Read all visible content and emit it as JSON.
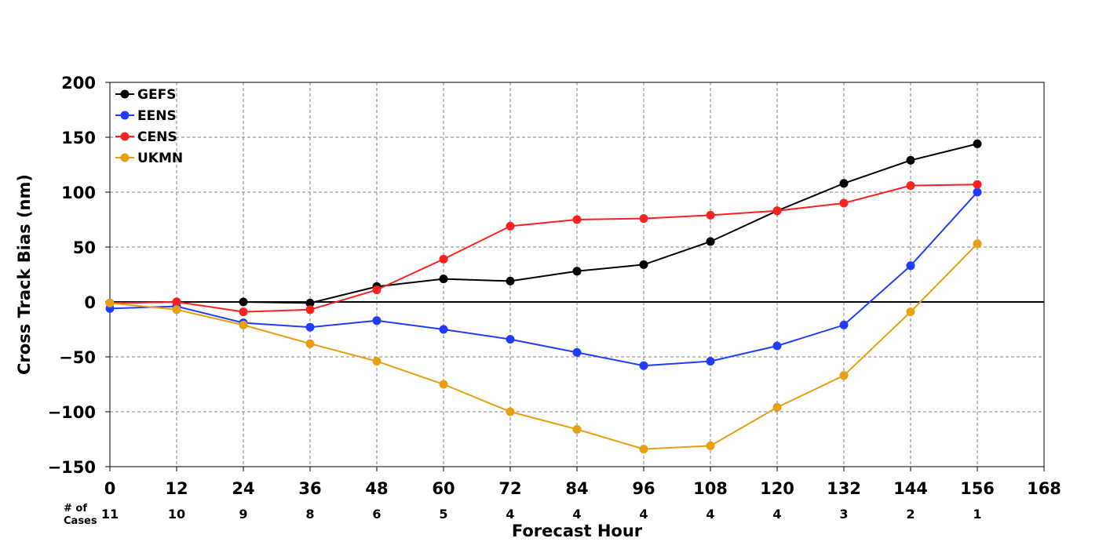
{
  "chart_data": {
    "type": "line",
    "xlabel": "Forecast Hour",
    "ylabel": "Cross Track Bias (nm)",
    "xlim": [
      0,
      168
    ],
    "ylim": [
      -150,
      200
    ],
    "x_ticks": [
      "0",
      "12",
      "24",
      "36",
      "48",
      "60",
      "72",
      "84",
      "96",
      "108",
      "120",
      "132",
      "144",
      "156",
      "168"
    ],
    "y_ticks": [
      "200",
      "150",
      "100",
      "50",
      "0",
      "−50",
      "−100",
      "−150"
    ],
    "grid": true,
    "legend_position": "top-left",
    "x": [
      0,
      12,
      24,
      36,
      48,
      60,
      72,
      84,
      96,
      108,
      120,
      132,
      144,
      156
    ],
    "series": [
      {
        "name": "GEFS",
        "color": "#000000",
        "values": [
          -1,
          0,
          0,
          -1,
          14,
          21,
          19,
          28,
          34,
          55,
          83,
          108,
          129,
          144
        ]
      },
      {
        "name": "EENS",
        "color": "#1f3cff",
        "values": [
          -6,
          -4,
          -19,
          -23,
          -17,
          -25,
          -34,
          -46,
          -58,
          -54,
          -40,
          -21,
          33,
          100
        ]
      },
      {
        "name": "CENS",
        "color": "#ff2020",
        "values": [
          -1,
          0,
          -9,
          -7,
          11,
          39,
          69,
          75,
          76,
          79,
          83,
          90,
          106,
          107
        ]
      },
      {
        "name": "UKMN",
        "color": "#e8a010",
        "values": [
          -1,
          -7,
          -21,
          -38,
          -54,
          -75,
          -100,
          -116,
          -134,
          -131,
          -96,
          -67,
          -9,
          53
        ]
      }
    ],
    "cases": {
      "label": [
        "# of",
        "Cases"
      ],
      "values": [
        "11",
        "10",
        "9",
        "8",
        "6",
        "5",
        "4",
        "4",
        "4",
        "4",
        "4",
        "3",
        "2",
        "1"
      ]
    }
  }
}
